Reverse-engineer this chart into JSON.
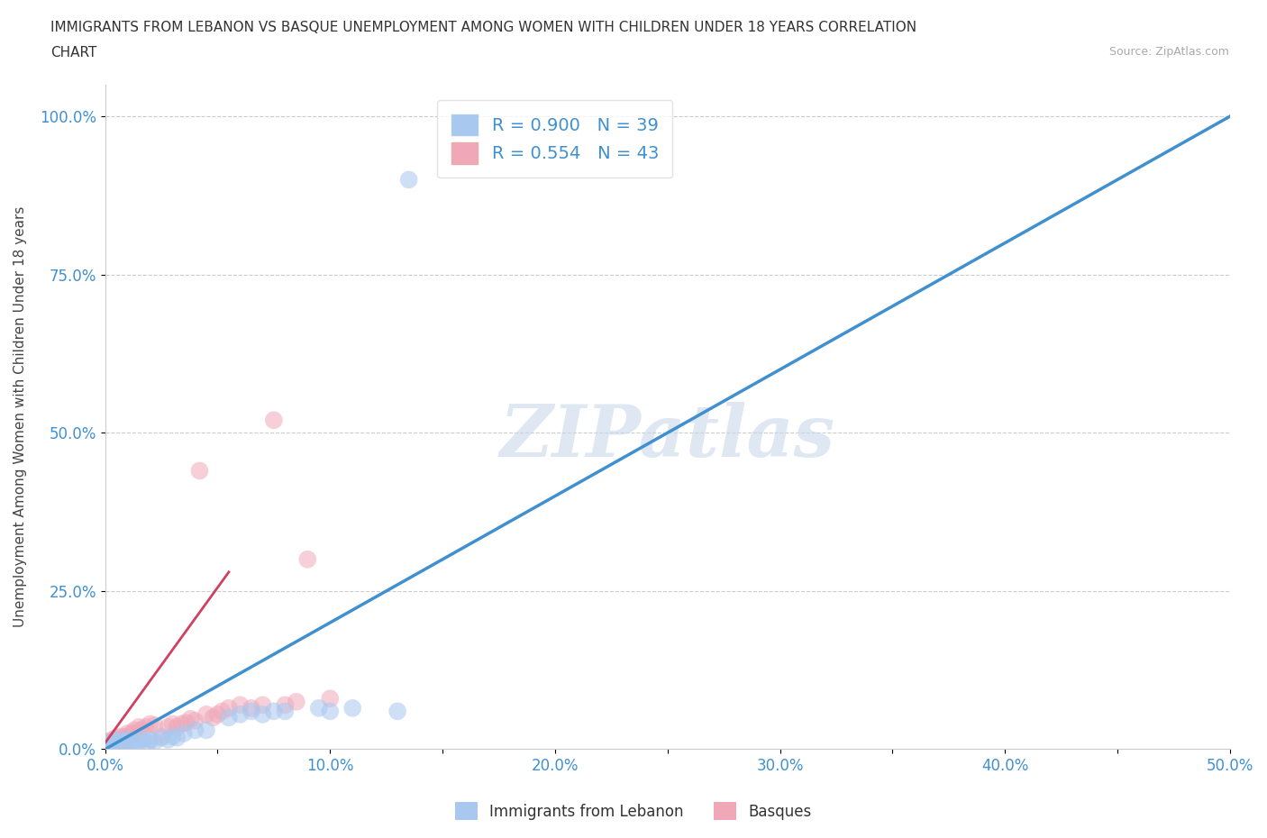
{
  "title_line1": "IMMIGRANTS FROM LEBANON VS BASQUE UNEMPLOYMENT AMONG WOMEN WITH CHILDREN UNDER 18 YEARS CORRELATION",
  "title_line2": "CHART",
  "source": "Source: ZipAtlas.com",
  "ylabel": "Unemployment Among Women with Children Under 18 years",
  "xlim": [
    0,
    0.5
  ],
  "ylim": [
    0,
    1.05
  ],
  "xtick_positions": [
    0,
    0.05,
    0.1,
    0.15,
    0.2,
    0.25,
    0.3,
    0.35,
    0.4,
    0.45,
    0.5
  ],
  "xtick_labels": [
    "0.0%",
    "",
    "10.0%",
    "",
    "20.0%",
    "",
    "30.0%",
    "",
    "40.0%",
    "",
    "50.0%"
  ],
  "ytick_positions": [
    0,
    0.25,
    0.5,
    0.75,
    1.0
  ],
  "ytick_labels": [
    "0.0%",
    "25.0%",
    "50.0%",
    "75.0%",
    "100.0%"
  ],
  "grid_color": "#cccccc",
  "background_color": "#ffffff",
  "watermark": "ZIPatlas",
  "color_lebanon": "#a8c8f0",
  "color_basque": "#f0a8b8",
  "trend_color_lebanon": "#4090d0",
  "trend_color_basque": "#d04060",
  "ref_line_color": "#e0b0b8",
  "lebanon_trend_x0": 0.0,
  "lebanon_trend_y0": 0.0,
  "lebanon_trend_x1": 0.5,
  "lebanon_trend_y1": 1.0,
  "basque_trend_x0": 0.0,
  "basque_trend_y0": 0.01,
  "basque_trend_x1": 0.055,
  "basque_trend_y1": 0.28,
  "scatter_lebanon_x": [
    0.0005,
    0.001,
    0.0015,
    0.002,
    0.0025,
    0.003,
    0.004,
    0.005,
    0.006,
    0.007,
    0.008,
    0.009,
    0.01,
    0.011,
    0.012,
    0.013,
    0.015,
    0.017,
    0.019,
    0.02,
    0.022,
    0.025,
    0.028,
    0.03,
    0.032,
    0.035,
    0.04,
    0.045,
    0.055,
    0.06,
    0.065,
    0.07,
    0.075,
    0.08,
    0.095,
    0.1,
    0.11,
    0.13,
    0.135
  ],
  "scatter_lebanon_y": [
    0.005,
    0.008,
    0.005,
    0.01,
    0.008,
    0.005,
    0.01,
    0.015,
    0.01,
    0.012,
    0.01,
    0.008,
    0.015,
    0.012,
    0.01,
    0.008,
    0.012,
    0.015,
    0.01,
    0.015,
    0.012,
    0.018,
    0.015,
    0.02,
    0.018,
    0.025,
    0.03,
    0.03,
    0.05,
    0.055,
    0.06,
    0.055,
    0.06,
    0.06,
    0.065,
    0.06,
    0.065,
    0.06,
    0.9
  ],
  "scatter_basque_x": [
    0.0005,
    0.001,
    0.0015,
    0.002,
    0.0025,
    0.003,
    0.004,
    0.005,
    0.006,
    0.007,
    0.008,
    0.009,
    0.01,
    0.011,
    0.012,
    0.013,
    0.015,
    0.016,
    0.018,
    0.02,
    0.022,
    0.025,
    0.028,
    0.03,
    0.032,
    0.034,
    0.036,
    0.038,
    0.04,
    0.042,
    0.045,
    0.048,
    0.05,
    0.052,
    0.055,
    0.06,
    0.065,
    0.07,
    0.075,
    0.08,
    0.085,
    0.09,
    0.1
  ],
  "scatter_basque_y": [
    0.005,
    0.01,
    0.008,
    0.012,
    0.01,
    0.015,
    0.012,
    0.018,
    0.015,
    0.02,
    0.018,
    0.02,
    0.025,
    0.02,
    0.025,
    0.03,
    0.035,
    0.03,
    0.035,
    0.04,
    0.038,
    0.02,
    0.035,
    0.04,
    0.035,
    0.04,
    0.042,
    0.048,
    0.045,
    0.44,
    0.055,
    0.05,
    0.055,
    0.06,
    0.065,
    0.07,
    0.065,
    0.07,
    0.52,
    0.07,
    0.075,
    0.3,
    0.08
  ]
}
